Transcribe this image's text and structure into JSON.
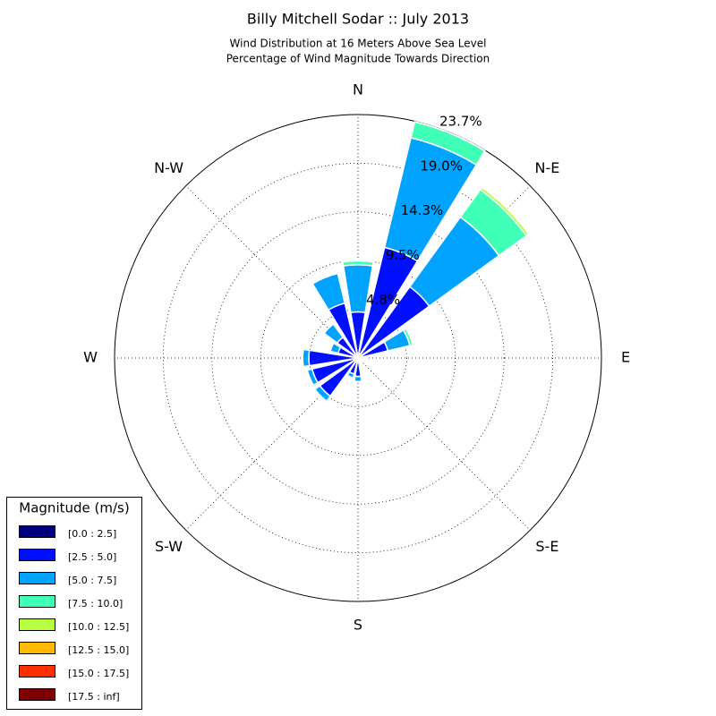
{
  "chart_data": {
    "type": "windrose",
    "title": "Billy Mitchell Sodar :: July 2013",
    "subtitle": [
      "Wind Distribution at 16 Meters Above Sea Level",
      "Percentage of Wind Magnitude Towards Direction"
    ],
    "categories": [
      "N",
      null,
      "N-E",
      null,
      "E",
      null,
      "S-E",
      null,
      "S",
      null,
      "S-W",
      null,
      "W",
      null,
      "N-W",
      null
    ],
    "rlim": [
      0,
      23.75
    ],
    "rticks": [
      {
        "value": 4.75,
        "label": "4.8%"
      },
      {
        "value": 9.5,
        "label": "9.5%"
      },
      {
        "value": 14.25,
        "label": "14.3%"
      },
      {
        "value": 19.0,
        "label": "19.0%"
      },
      {
        "value": 23.75,
        "label": "23.7%"
      }
    ],
    "grid": true,
    "legend_title": "Magnitude (m/s)",
    "legend_position": "lower-left",
    "series": [
      {
        "name": "[0.0 : 2.5]",
        "color": "#00007f",
        "values": [
          0.2,
          0.2,
          0.2,
          0.2,
          0.2,
          0.2,
          0.2,
          0.2,
          0.2,
          0.2,
          0.2,
          0.2,
          0.2,
          0.2,
          0.2,
          0.2
        ]
      },
      {
        "name": "[2.5 : 5.0]",
        "color": "#0010ff",
        "values": [
          4.3,
          10.9,
          8.4,
          2.8,
          0.4,
          0.2,
          0.2,
          0.2,
          1.6,
          1.4,
          4.4,
          4.4,
          4.6,
          1.8,
          2.3,
          5.3
        ]
      },
      {
        "name": "[5.0 : 7.5]",
        "color": "#00a4ff",
        "values": [
          4.6,
          11.0,
          8.4,
          2.2,
          0.1,
          0,
          0,
          0.1,
          0.5,
          0.4,
          0.6,
          0.5,
          0.6,
          0.8,
          1.6,
          3.0
        ]
      },
      {
        "name": "[7.5 : 10.0]",
        "color": "#40ffb7",
        "values": [
          0.4,
          1.6,
          3.3,
          0.3,
          0,
          0,
          0,
          0,
          0,
          0,
          0.1,
          0,
          0.1,
          0,
          0,
          0
        ]
      },
      {
        "name": "[10.0 : 12.5]",
        "color": "#b7ff40",
        "values": [
          0,
          0,
          0.3,
          0,
          0,
          0,
          0,
          0,
          0,
          0,
          0,
          0,
          0,
          0,
          0,
          0
        ]
      },
      {
        "name": "[12.5 : 15.0]",
        "color": "#ffb900",
        "values": [
          0,
          0,
          0,
          0,
          0,
          0,
          0,
          0,
          0,
          0,
          0,
          0,
          0,
          0,
          0,
          0
        ]
      },
      {
        "name": "[15.0 : 17.5]",
        "color": "#ff3000",
        "values": [
          0,
          0,
          0,
          0,
          0,
          0,
          0,
          0,
          0,
          0,
          0,
          0,
          0,
          0,
          0,
          0
        ]
      },
      {
        "name": "[17.5 : inf]",
        "color": "#7f0000",
        "values": [
          0,
          0,
          0,
          0,
          0,
          0,
          0,
          0,
          0,
          0,
          0,
          0,
          0,
          0,
          0,
          0
        ]
      }
    ]
  }
}
